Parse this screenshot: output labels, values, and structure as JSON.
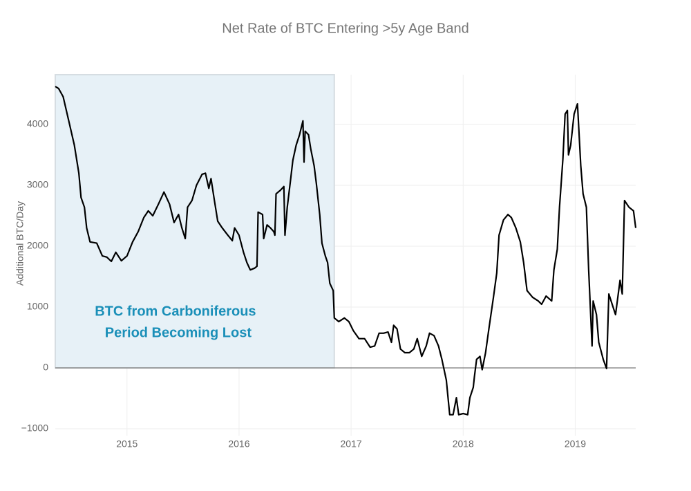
{
  "chart_data": {
    "type": "line",
    "title": "Net Rate of BTC Entering >5y Age Band",
    "ylabel": "Additional BTC/Day",
    "annotation": [
      "BTC from Carboniferous",
      "Period Becoming Lost"
    ],
    "shade_x": [
      2014.36,
      2016.85
    ],
    "color": "#000000",
    "xlim": [
      2014.36,
      2019.54
    ],
    "ylim": [
      -1114,
      4818
    ],
    "xticks": [
      2015,
      2016,
      2017,
      2018,
      2019
    ],
    "yticks": [
      {
        "value": -1000,
        "label": "−1000"
      },
      0,
      1000,
      2000,
      3000,
      4000
    ],
    "grid": true,
    "x": [
      2014.36,
      2014.39,
      2014.43,
      2014.48,
      2014.53,
      2014.57,
      2014.59,
      2014.62,
      2014.64,
      2014.67,
      2014.73,
      2014.78,
      2014.82,
      2014.86,
      2014.9,
      2014.95,
      2015.0,
      2015.05,
      2015.1,
      2015.15,
      2015.19,
      2015.23,
      2015.28,
      2015.33,
      2015.38,
      2015.42,
      2015.46,
      2015.49,
      2015.52,
      2015.54,
      2015.58,
      2015.62,
      2015.67,
      2015.7,
      2015.73,
      2015.75,
      2015.78,
      2015.81,
      2015.85,
      2015.9,
      2015.94,
      2015.96,
      2016.0,
      2016.04,
      2016.07,
      2016.1,
      2016.14,
      2016.16,
      2016.17,
      2016.21,
      2016.22,
      2016.25,
      2016.28,
      2016.31,
      2016.32,
      2016.33,
      2016.37,
      2016.4,
      2016.41,
      2016.43,
      2016.46,
      2016.48,
      2016.51,
      2016.54,
      2016.57,
      2016.58,
      2016.59,
      2016.62,
      2016.64,
      2016.67,
      2016.69,
      2016.72,
      2016.74,
      2016.77,
      2016.79,
      2016.81,
      2016.84,
      2016.85,
      2016.89,
      2016.94,
      2016.98,
      2017.02,
      2017.07,
      2017.12,
      2017.17,
      2017.21,
      2017.25,
      2017.29,
      2017.33,
      2017.36,
      2017.38,
      2017.41,
      2017.44,
      2017.48,
      2017.52,
      2017.56,
      2017.59,
      2017.63,
      2017.67,
      2017.7,
      2017.74,
      2017.78,
      2017.81,
      2017.85,
      2017.88,
      2017.91,
      2017.94,
      2017.96,
      2018.0,
      2018.04,
      2018.06,
      2018.09,
      2018.1,
      2018.12,
      2018.15,
      2018.17,
      2018.2,
      2018.23,
      2018.27,
      2018.3,
      2018.32,
      2018.36,
      2018.4,
      2018.43,
      2018.47,
      2018.51,
      2018.54,
      2018.57,
      2018.62,
      2018.67,
      2018.7,
      2018.74,
      2018.79,
      2018.81,
      2018.84,
      2018.86,
      2018.89,
      2018.91,
      2018.93,
      2018.94,
      2018.96,
      2018.99,
      2019.02,
      2019.05,
      2019.07,
      2019.1,
      2019.12,
      2019.15,
      2019.16,
      2019.19,
      2019.21,
      2019.25,
      2019.28,
      2019.3,
      2019.33,
      2019.36,
      2019.4,
      2019.42,
      2019.44,
      2019.48,
      2019.52,
      2019.54
    ],
    "values": [
      4625,
      4590,
      4455,
      4060,
      3660,
      3200,
      2800,
      2640,
      2300,
      2070,
      2050,
      1840,
      1820,
      1750,
      1900,
      1760,
      1840,
      2070,
      2240,
      2470,
      2580,
      2500,
      2690,
      2890,
      2690,
      2390,
      2520,
      2300,
      2125,
      2640,
      2750,
      3000,
      3180,
      3200,
      2950,
      3110,
      2750,
      2410,
      2300,
      2180,
      2090,
      2300,
      2180,
      1900,
      1730,
      1610,
      1640,
      1670,
      2560,
      2520,
      2125,
      2350,
      2300,
      2240,
      2180,
      2860,
      2920,
      2980,
      2180,
      2640,
      3090,
      3410,
      3660,
      3830,
      4060,
      3380,
      3890,
      3830,
      3600,
      3320,
      3030,
      2520,
      2050,
      1840,
      1730,
      1390,
      1270,
      820,
      760,
      820,
      760,
      610,
      480,
      480,
      340,
      360,
      570,
      570,
      590,
      420,
      700,
      640,
      310,
      250,
      250,
      310,
      480,
      190,
      360,
      570,
      530,
      360,
      140,
      -200,
      -770,
      -770,
      -490,
      -770,
      -750,
      -770,
      -490,
      -320,
      -150,
      140,
      190,
      -30,
      250,
      650,
      1160,
      1560,
      2180,
      2430,
      2520,
      2470,
      2300,
      2070,
      1730,
      1270,
      1160,
      1100,
      1045,
      1180,
      1100,
      1610,
      1950,
      2640,
      3430,
      4170,
      4230,
      3500,
      3660,
      4170,
      4340,
      3320,
      2860,
      2640,
      1610,
      360,
      1100,
      875,
      420,
      140,
      -10,
      1215,
      1045,
      875,
      1440,
      1215,
      2750,
      2640,
      2580,
      2300
    ]
  }
}
